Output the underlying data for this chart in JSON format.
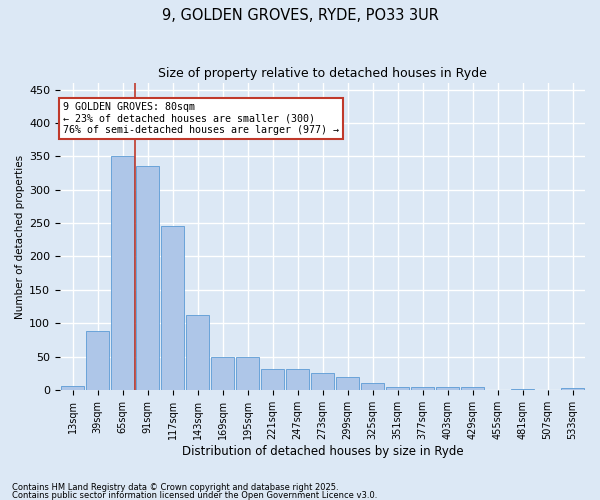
{
  "title1": "9, GOLDEN GROVES, RYDE, PO33 3UR",
  "title2": "Size of property relative to detached houses in Ryde",
  "xlabel": "Distribution of detached houses by size in Ryde",
  "ylabel": "Number of detached properties",
  "categories": [
    "13sqm",
    "39sqm",
    "65sqm",
    "91sqm",
    "117sqm",
    "143sqm",
    "169sqm",
    "195sqm",
    "221sqm",
    "247sqm",
    "273sqm",
    "299sqm",
    "325sqm",
    "351sqm",
    "377sqm",
    "403sqm",
    "429sqm",
    "455sqm",
    "481sqm",
    "507sqm",
    "533sqm"
  ],
  "values": [
    6,
    88,
    350,
    335,
    246,
    112,
    50,
    50,
    32,
    32,
    25,
    20,
    10,
    5,
    5,
    5,
    4,
    0,
    2,
    0,
    3
  ],
  "bar_color": "#aec6e8",
  "bar_edge_color": "#5b9bd5",
  "vline_color": "#c0392b",
  "annotation_line1": "9 GOLDEN GROVES: 80sqm",
  "annotation_line2": "← 23% of detached houses are smaller (300)",
  "annotation_line3": "76% of semi-detached houses are larger (977) →",
  "annotation_box_color": "#ffffff",
  "annotation_box_edge": "#c0392b",
  "background_color": "#dce8f5",
  "plot_bg_color": "#dce8f5",
  "grid_color": "#ffffff",
  "footer1": "Contains HM Land Registry data © Crown copyright and database right 2025.",
  "footer2": "Contains public sector information licensed under the Open Government Licence v3.0.",
  "ylim": [
    0,
    460
  ],
  "yticks": [
    0,
    50,
    100,
    150,
    200,
    250,
    300,
    350,
    400,
    450
  ]
}
